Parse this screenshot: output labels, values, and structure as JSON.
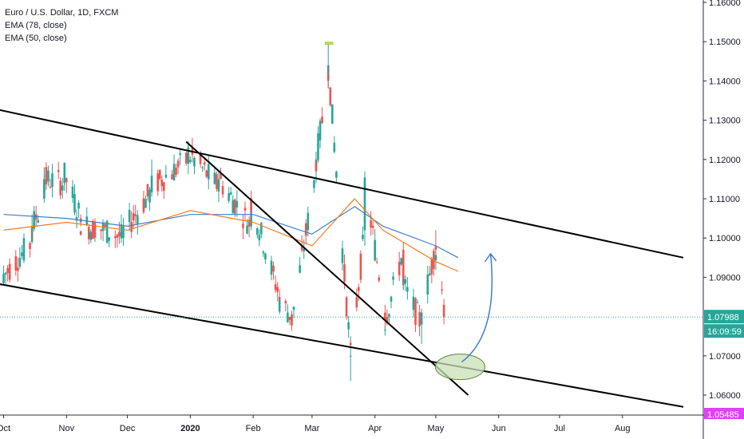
{
  "legend": {
    "symbol": "Euro / U.S. Dollar, 1D, FXCM",
    "ema78": "EMA (78, close)",
    "ema50": "EMA (50, close)"
  },
  "price_axis": {
    "ticks": [
      "1.16000",
      "1.15000",
      "1.14000",
      "1.13000",
      "1.12000",
      "1.11000",
      "1.10000",
      "1.09000",
      "1.07000",
      "1.06000"
    ],
    "last_price": "1.07988",
    "countdown": "16:09:59",
    "bottom_label": "1.05485"
  },
  "time_axis": {
    "ticks": [
      {
        "label": "Oct",
        "bold": false
      },
      {
        "label": "Nov",
        "bold": false
      },
      {
        "label": "Dec",
        "bold": false
      },
      {
        "label": "2020",
        "bold": true
      },
      {
        "label": "Feb",
        "bold": false
      },
      {
        "label": "Mar",
        "bold": false
      },
      {
        "label": "Apr",
        "bold": false
      },
      {
        "label": "May",
        "bold": false
      },
      {
        "label": "Jun",
        "bold": false
      },
      {
        "label": "Jul",
        "bold": false
      },
      {
        "label": "Aug",
        "bold": false
      }
    ]
  },
  "colors": {
    "up": "#26a69a",
    "down": "#ef5350",
    "ema78": "#3f7fc8",
    "ema50": "#f57c1f",
    "last_price": "#26a69a",
    "trendline": "#000000",
    "arrow": "#3f7fc8",
    "ellipse_fill": "#c8dfb8",
    "ellipse_stroke": "#5a8a3a",
    "bottom_label_bg": "#e040fb"
  },
  "chart_data": {
    "type": "candlestick",
    "title": "Euro / U.S. Dollar, 1D, FXCM",
    "ylim": [
      1.054,
      1.162
    ],
    "xlim": [
      "2019-10-01",
      "2020-08-31"
    ],
    "ohlc_approx": [
      {
        "date": "2019-10-01",
        "o": 1.0885,
        "h": 1.093,
        "l": 1.088,
        "c": 1.0905
      },
      {
        "date": "2019-10-15",
        "o": 1.099,
        "h": 1.106,
        "l": 1.0985,
        "c": 1.103
      },
      {
        "date": "2019-10-21",
        "o": 1.11,
        "h": 1.118,
        "l": 1.109,
        "c": 1.115
      },
      {
        "date": "2019-10-31",
        "o": 1.114,
        "h": 1.118,
        "l": 1.112,
        "c": 1.116
      },
      {
        "date": "2019-11-08",
        "o": 1.105,
        "h": 1.106,
        "l": 1.103,
        "c": 1.104
      },
      {
        "date": "2019-11-15",
        "o": 1.102,
        "h": 1.104,
        "l": 1.099,
        "c": 1.103
      },
      {
        "date": "2019-11-29",
        "o": 1.1,
        "h": 1.102,
        "l": 1.098,
        "c": 1.1015
      },
      {
        "date": "2019-12-13",
        "o": 1.112,
        "h": 1.12,
        "l": 1.111,
        "c": 1.113
      },
      {
        "date": "2019-12-31",
        "o": 1.12,
        "h": 1.124,
        "l": 1.119,
        "c": 1.1215
      },
      {
        "date": "2020-01-15",
        "o": 1.113,
        "h": 1.117,
        "l": 1.112,
        "c": 1.115
      },
      {
        "date": "2020-01-31",
        "o": 1.103,
        "h": 1.11,
        "l": 1.102,
        "c": 1.1095
      },
      {
        "date": "2020-02-14",
        "o": 1.085,
        "h": 1.087,
        "l": 1.083,
        "c": 1.084
      },
      {
        "date": "2020-02-20",
        "o": 1.08,
        "h": 1.0815,
        "l": 1.0778,
        "c": 1.079
      },
      {
        "date": "2020-03-03",
        "o": 1.117,
        "h": 1.122,
        "l": 1.114,
        "c": 1.12
      },
      {
        "date": "2020-03-09",
        "o": 1.14,
        "h": 1.1495,
        "l": 1.138,
        "c": 1.144
      },
      {
        "date": "2020-03-20",
        "o": 1.07,
        "h": 1.075,
        "l": 1.0636,
        "c": 1.07
      },
      {
        "date": "2020-03-27",
        "o": 1.102,
        "h": 1.1145,
        "l": 1.098,
        "c": 1.114
      },
      {
        "date": "2020-04-06",
        "o": 1.081,
        "h": 1.083,
        "l": 1.077,
        "c": 1.079
      },
      {
        "date": "2020-04-15",
        "o": 1.097,
        "h": 1.099,
        "l": 1.087,
        "c": 1.088
      },
      {
        "date": "2020-04-24",
        "o": 1.078,
        "h": 1.082,
        "l": 1.073,
        "c": 1.081
      },
      {
        "date": "2020-05-01",
        "o": 1.098,
        "h": 1.102,
        "l": 1.095,
        "c": 1.097
      },
      {
        "date": "2020-05-05",
        "o": 1.083,
        "h": 1.0845,
        "l": 1.078,
        "c": 1.0799
      }
    ],
    "ema78_approx": [
      {
        "date": "2019-10-01",
        "v": 1.106
      },
      {
        "date": "2019-11-01",
        "v": 1.105
      },
      {
        "date": "2019-12-01",
        "v": 1.103
      },
      {
        "date": "2020-01-01",
        "v": 1.106
      },
      {
        "date": "2020-02-01",
        "v": 1.106
      },
      {
        "date": "2020-03-01",
        "v": 1.101
      },
      {
        "date": "2020-03-22",
        "v": 1.108
      },
      {
        "date": "2020-04-05",
        "v": 1.103
      },
      {
        "date": "2020-05-01",
        "v": 1.098
      },
      {
        "date": "2020-05-12",
        "v": 1.095
      }
    ],
    "ema50_approx": [
      {
        "date": "2019-10-01",
        "v": 1.102
      },
      {
        "date": "2019-11-01",
        "v": 1.104
      },
      {
        "date": "2019-12-01",
        "v": 1.102
      },
      {
        "date": "2020-01-01",
        "v": 1.107
      },
      {
        "date": "2020-02-01",
        "v": 1.104
      },
      {
        "date": "2020-03-01",
        "v": 1.098
      },
      {
        "date": "2020-03-22",
        "v": 1.11
      },
      {
        "date": "2020-04-05",
        "v": 1.102
      },
      {
        "date": "2020-05-01",
        "v": 1.094
      },
      {
        "date": "2020-05-12",
        "v": 1.0915
      }
    ],
    "trendlines": [
      {
        "name": "channel-upper",
        "from": {
          "date": "2019-09-21",
          "v": 1.1335
        },
        "to": {
          "date": "2020-08-31",
          "v": 1.095
        }
      },
      {
        "name": "channel-lower",
        "from": {
          "date": "2019-09-21",
          "v": 1.089
        },
        "to": {
          "date": "2020-08-31",
          "v": 1.057
        }
      },
      {
        "name": "descending-line",
        "from": {
          "date": "2019-12-30",
          "v": 1.1245
        },
        "to": {
          "date": "2020-05-17",
          "v": 1.06
        }
      }
    ]
  }
}
